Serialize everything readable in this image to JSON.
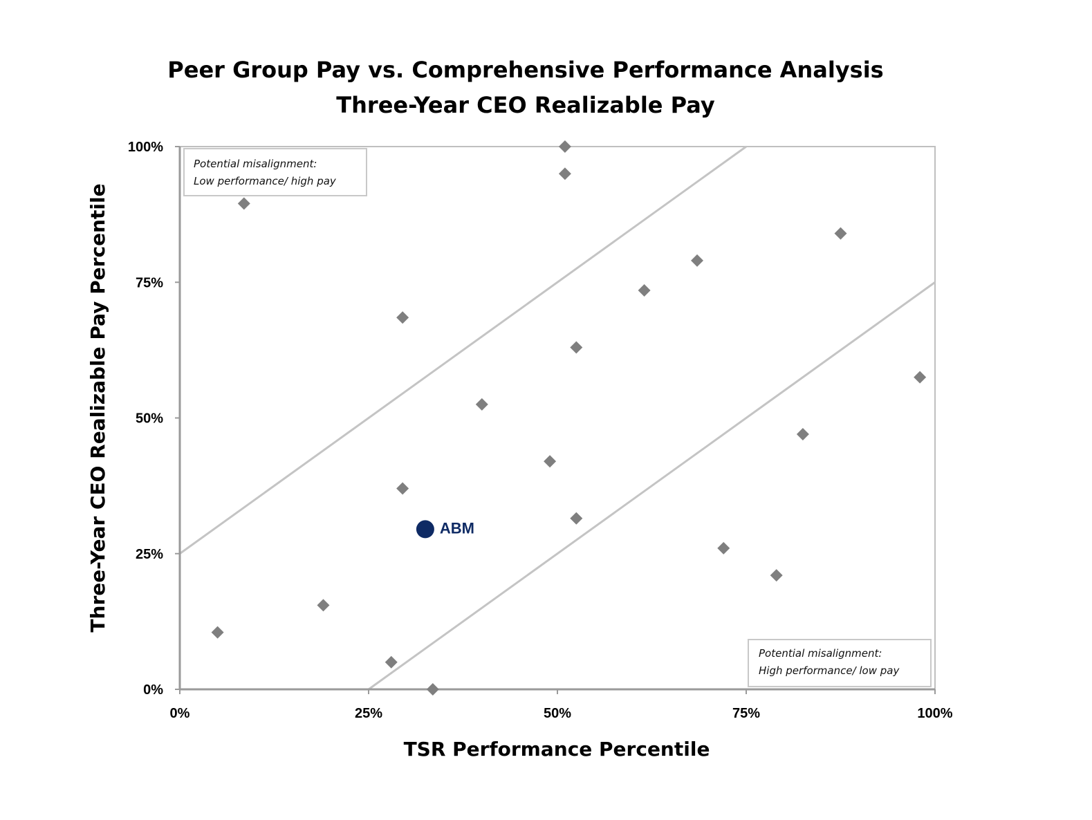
{
  "colors": {
    "point": "#7f7f7f",
    "highlight": "#0e2a64",
    "frame": "#bfbfbf",
    "axis": "#9a9a9a",
    "band_line": "#c4c4c4"
  },
  "chart_data": {
    "type": "scatter",
    "title": "Peer Group Pay vs. Comprehensive Performance Analysis",
    "subtitle": "Three-Year CEO Realizable Pay",
    "xlabel": "TSR Performance Percentile",
    "ylabel": "Three-Year CEO Realizable Pay Percentile",
    "xlim": [
      0,
      100
    ],
    "ylim": [
      0,
      100
    ],
    "x_ticks": [
      0,
      25,
      50,
      75,
      100
    ],
    "x_tick_labels": [
      "0%",
      "25%",
      "50%",
      "75%",
      "100%"
    ],
    "y_ticks": [
      0,
      25,
      50,
      75,
      100
    ],
    "y_tick_labels": [
      "0%",
      "25%",
      "50%",
      "75%",
      "100%"
    ],
    "grid": false,
    "reference_lines": [
      {
        "name": "upper-band",
        "points": [
          [
            0,
            25
          ],
          [
            75,
            100
          ]
        ]
      },
      {
        "name": "lower-band",
        "points": [
          [
            25,
            0
          ],
          [
            100,
            75
          ]
        ]
      }
    ],
    "series": [
      {
        "name": "Peer Group",
        "marker": "diamond",
        "points": [
          {
            "x": 5,
            "y": 10.5
          },
          {
            "x": 8.5,
            "y": 89.5
          },
          {
            "x": 19,
            "y": 15.5
          },
          {
            "x": 28,
            "y": 5
          },
          {
            "x": 29.5,
            "y": 68.5
          },
          {
            "x": 29.5,
            "y": 37
          },
          {
            "x": 33.5,
            "y": 0
          },
          {
            "x": 40,
            "y": 52.5
          },
          {
            "x": 49,
            "y": 42
          },
          {
            "x": 51,
            "y": 100
          },
          {
            "x": 51,
            "y": 95
          },
          {
            "x": 52.5,
            "y": 63
          },
          {
            "x": 52.5,
            "y": 31.5
          },
          {
            "x": 61.5,
            "y": 73.5
          },
          {
            "x": 68.5,
            "y": 79
          },
          {
            "x": 72,
            "y": 26
          },
          {
            "x": 79,
            "y": 21
          },
          {
            "x": 82.5,
            "y": 47
          },
          {
            "x": 87.5,
            "y": 84
          },
          {
            "x": 98,
            "y": 57.5
          }
        ]
      },
      {
        "name": "ABM",
        "marker": "circle",
        "points": [
          {
            "x": 32.5,
            "y": 29.5,
            "label": "ABM"
          }
        ]
      }
    ],
    "annotations": [
      {
        "name": "low-performance-high-pay",
        "position": "top-left",
        "lines": [
          "Potential misalignment:",
          "Low performance/ high pay"
        ]
      },
      {
        "name": "high-performance-low-pay",
        "position": "bottom-right",
        "lines": [
          "Potential misalignment:",
          "High performance/ low pay"
        ]
      }
    ]
  }
}
